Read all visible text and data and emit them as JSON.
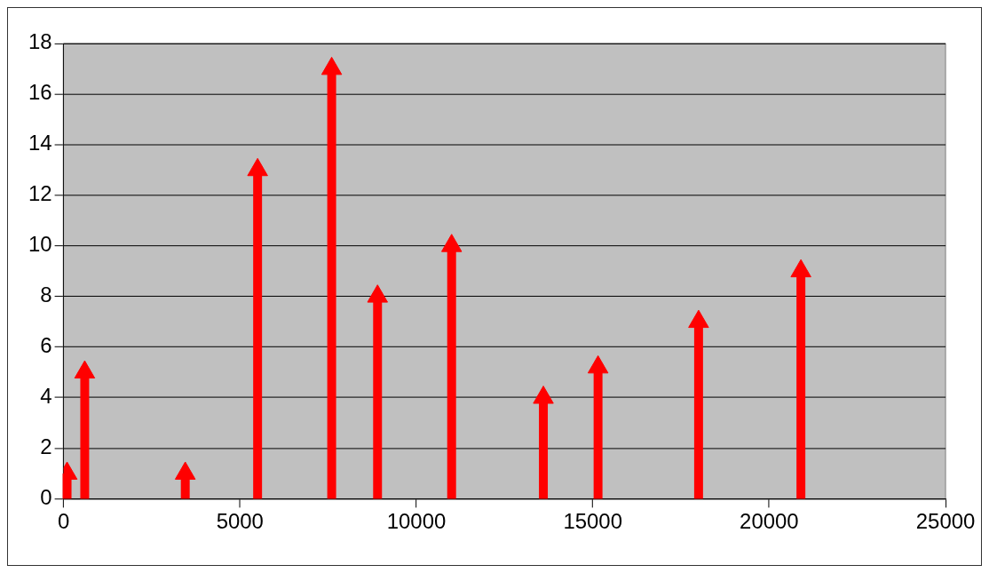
{
  "chart_data": {
    "type": "lollipop",
    "marker": "triangle",
    "grid": "y",
    "legend": false,
    "x": [
      100,
      600,
      3450,
      5500,
      7600,
      8900,
      11000,
      13600,
      15150,
      18000,
      20900
    ],
    "series": [
      {
        "color": "#ff0000",
        "values": [
          1,
          5,
          1,
          13,
          17,
          8,
          10,
          4,
          5.2,
          7,
          9
        ]
      }
    ],
    "xlim": [
      0,
      25000
    ],
    "xticks": [
      0,
      5000,
      10000,
      15000,
      20000,
      25000
    ],
    "ylim": [
      0,
      18
    ],
    "yticks": [
      0,
      2,
      4,
      6,
      8,
      10,
      12,
      14,
      16,
      18
    ]
  }
}
